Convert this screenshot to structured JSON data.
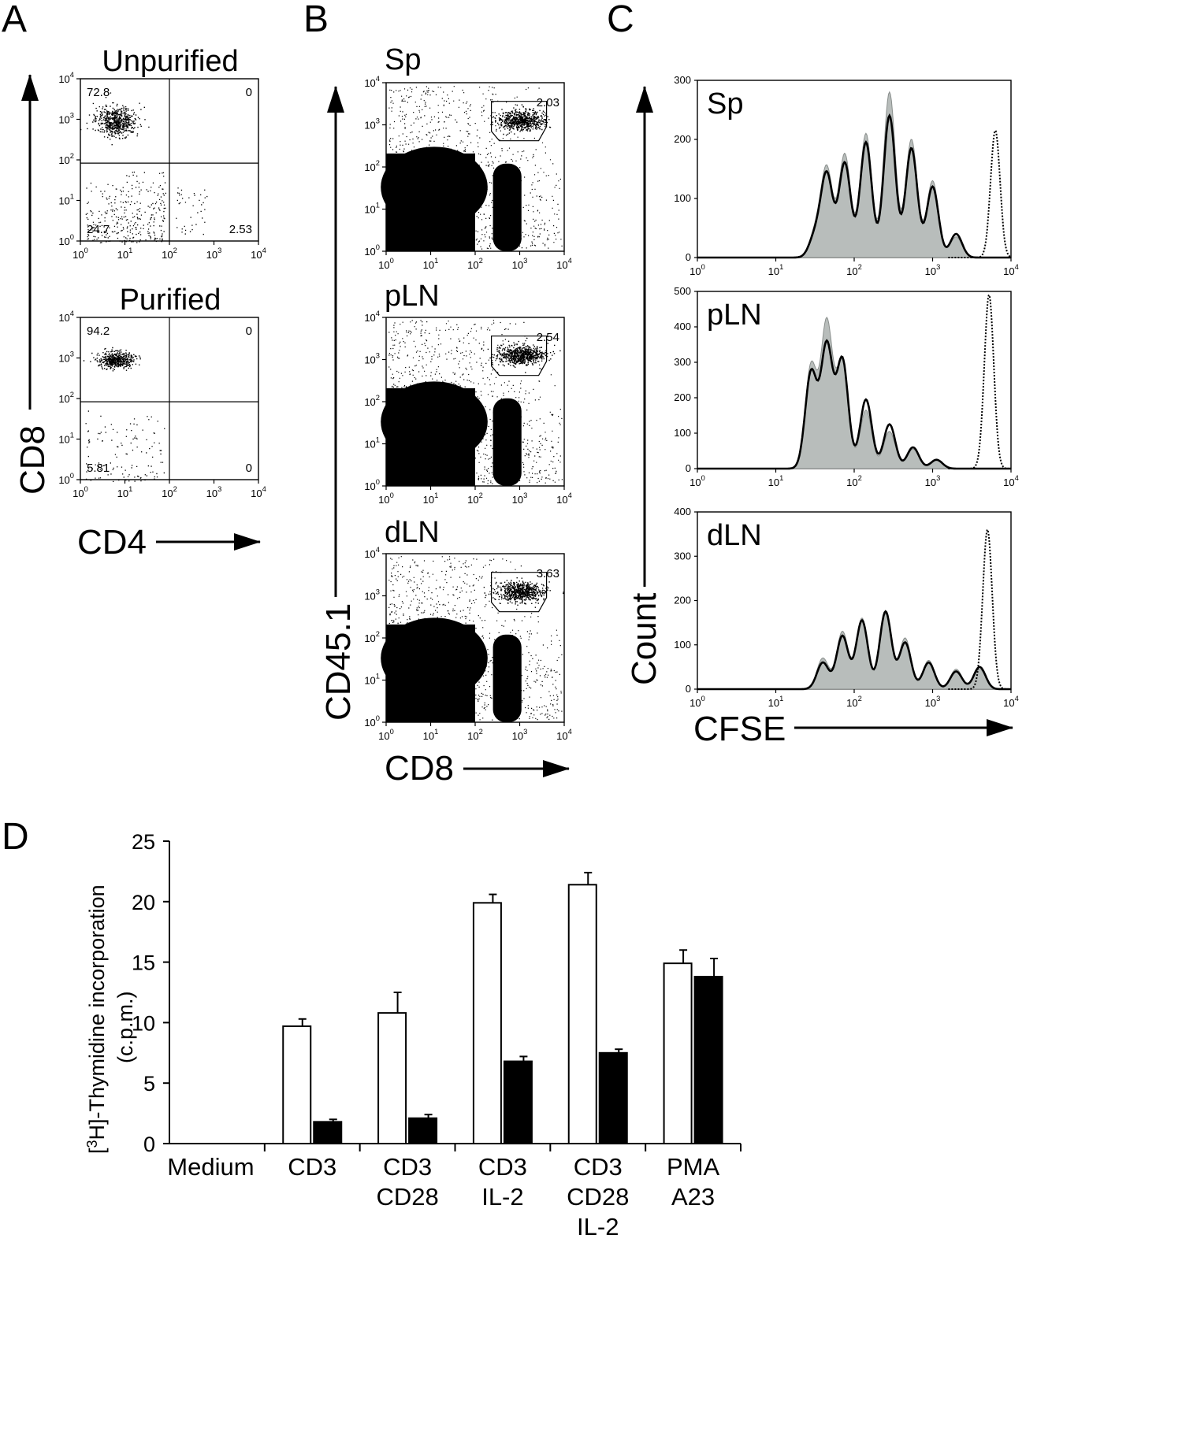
{
  "panels": {
    "A": {
      "letter": "A",
      "y_axis_label": "CD8",
      "x_axis_label": "CD4",
      "plots": [
        {
          "title": "Unpurified",
          "quadrants": {
            "upper_left": "72.8",
            "upper_right": "0",
            "lower_left": "24.7",
            "lower_right": "2.53"
          }
        },
        {
          "title": "Purified",
          "quadrants": {
            "upper_left": "94.2",
            "upper_right": "0",
            "lower_left": "5.81",
            "lower_right": "0"
          }
        }
      ]
    },
    "B": {
      "letter": "B",
      "y_axis_label": "CD45.1",
      "x_axis_label": "CD8",
      "plots": [
        {
          "title": "Sp",
          "gate_percent": "2.03"
        },
        {
          "title": "pLN",
          "gate_percent": "2.54"
        },
        {
          "title": "dLN",
          "gate_percent": "3.63"
        }
      ]
    },
    "C": {
      "letter": "C",
      "y_axis_label": "Count",
      "x_axis_label": "CFSE",
      "plots": [
        {
          "title": "Sp",
          "y_ticks": [
            "0",
            "100",
            "200",
            "300"
          ],
          "ymax": 300
        },
        {
          "title": "pLN",
          "y_ticks": [
            "0",
            "100",
            "200",
            "300",
            "400",
            "500"
          ],
          "ymax": 500
        },
        {
          "title": "dLN",
          "y_ticks": [
            "0",
            "100",
            "200",
            "300",
            "400"
          ],
          "ymax": 400
        }
      ]
    },
    "D": {
      "letter": "D"
    }
  },
  "log_ticks": [
    {
      "base": "10",
      "exp": "0"
    },
    {
      "base": "10",
      "exp": "1"
    },
    {
      "base": "10",
      "exp": "2"
    },
    {
      "base": "10",
      "exp": "3"
    },
    {
      "base": "10",
      "exp": "4"
    }
  ],
  "chart_data": [
    {
      "type": "histogram",
      "panel": "C-Sp",
      "xscale": "log",
      "xlim": [
        1,
        10000
      ],
      "ylim": [
        0,
        300
      ],
      "ylabel": "Count",
      "xlabel": "CFSE",
      "peaks_log10x": [
        1.5,
        1.65,
        1.88,
        2.15,
        2.45,
        2.73,
        3.0,
        3.3
      ],
      "series": [
        {
          "name": "shaded",
          "peak_heights": [
            40,
            150,
            175,
            210,
            280,
            200,
            130,
            35
          ]
        },
        {
          "name": "solid",
          "peak_heights": [
            35,
            140,
            160,
            195,
            240,
            185,
            120,
            40
          ]
        },
        {
          "name": "dotted",
          "peak_log10x": 3.8,
          "peak_height": 215
        }
      ]
    },
    {
      "type": "histogram",
      "panel": "C-pLN",
      "xscale": "log",
      "xlim": [
        1,
        10000
      ],
      "ylim": [
        0,
        500
      ],
      "ylabel": "Count",
      "xlabel": "CFSE",
      "peaks_log10x": [
        1.45,
        1.65,
        1.85,
        2.15,
        2.45,
        2.75,
        3.05
      ],
      "series": [
        {
          "name": "shaded",
          "peak_heights": [
            290,
            410,
            300,
            165,
            105,
            55,
            25
          ]
        },
        {
          "name": "solid",
          "peak_heights": [
            270,
            345,
            305,
            195,
            125,
            60,
            25
          ]
        },
        {
          "name": "dotted",
          "peak_log10x": 3.72,
          "peak_height": 490
        }
      ]
    },
    {
      "type": "histogram",
      "panel": "C-dLN",
      "xscale": "log",
      "xlim": [
        1,
        10000
      ],
      "ylim": [
        0,
        400
      ],
      "ylabel": "Count",
      "xlabel": "CFSE",
      "peaks_log10x": [
        1.6,
        1.85,
        2.1,
        2.4,
        2.65,
        2.95,
        3.3,
        3.6
      ],
      "series": [
        {
          "name": "shaded",
          "peak_heights": [
            70,
            130,
            160,
            170,
            115,
            65,
            45,
            45
          ]
        },
        {
          "name": "solid",
          "peak_heights": [
            60,
            120,
            155,
            175,
            105,
            60,
            40,
            50
          ]
        },
        {
          "name": "dotted",
          "peak_log10x": 3.7,
          "peak_height": 360
        }
      ]
    },
    {
      "type": "bar",
      "panel": "D",
      "ylabel_line1": "[3H]-Thymidine incorporation",
      "ylabel_parts": {
        "open": "[",
        "sup": "3",
        "rest": "H]-Thymidine incorporation"
      },
      "ylabel_line2": "(c.p.m.)",
      "ylim": [
        0,
        25
      ],
      "y_ticks": [
        "0",
        "5",
        "10",
        "15",
        "20",
        "25"
      ],
      "categories": [
        [
          "Medium"
        ],
        [
          "CD3"
        ],
        [
          "CD3",
          "CD28"
        ],
        [
          "CD3",
          "IL-2"
        ],
        [
          "CD3",
          "CD28",
          "IL-2"
        ],
        [
          "PMA",
          "A23"
        ]
      ],
      "series": [
        {
          "name": "open",
          "color": "#ffffff",
          "values": [
            0,
            9.7,
            10.8,
            19.9,
            21.4,
            14.9
          ],
          "errors": [
            0,
            0.6,
            1.7,
            0.7,
            1.0,
            1.1
          ]
        },
        {
          "name": "filled",
          "color": "#000000",
          "values": [
            0,
            1.8,
            2.1,
            6.8,
            7.5,
            13.8
          ],
          "errors": [
            0,
            0.2,
            0.3,
            0.4,
            0.3,
            1.5
          ]
        }
      ]
    }
  ]
}
